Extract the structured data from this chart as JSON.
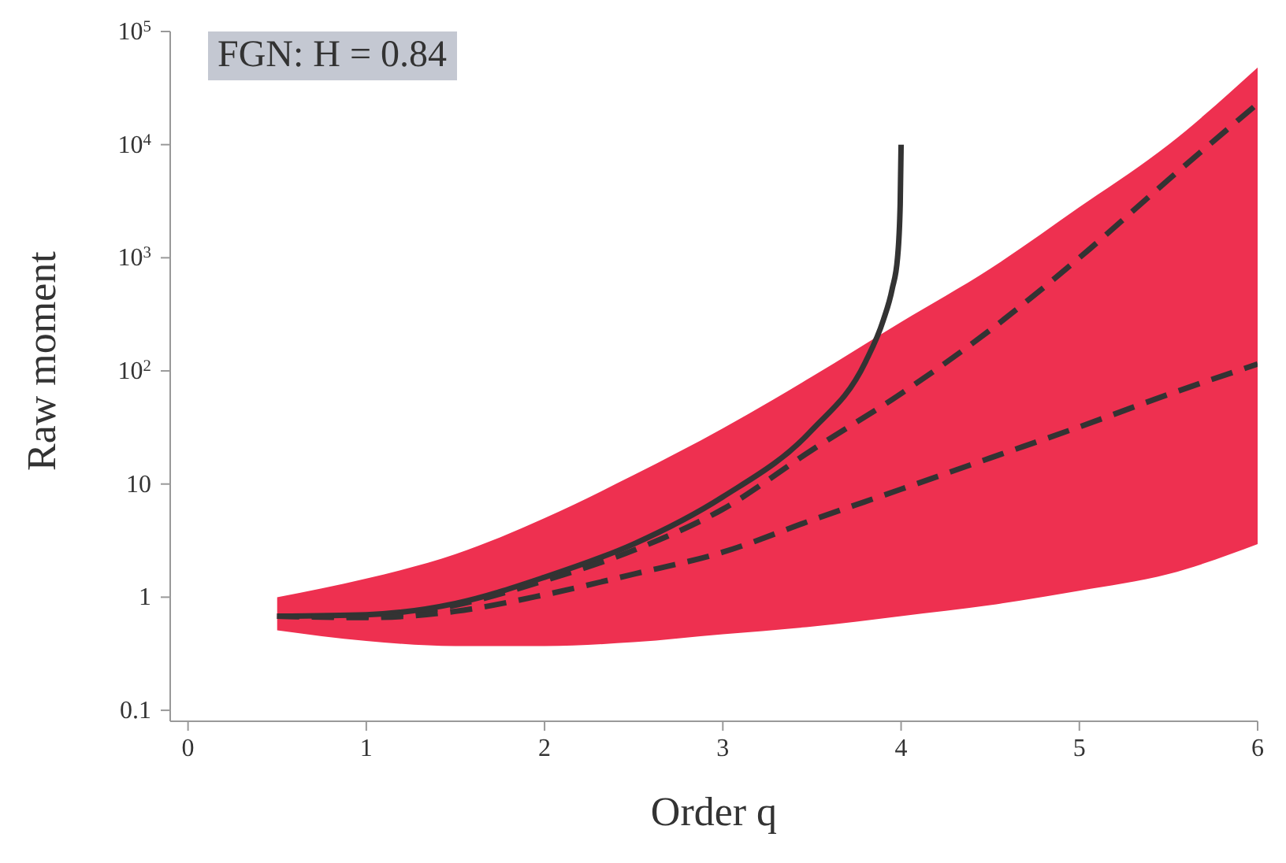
{
  "chart_data": {
    "type": "line",
    "title": "FGN: H = 0.84",
    "xlabel": "Order q",
    "ylabel": "Raw moment",
    "log": "y",
    "grid": false,
    "marker": "none",
    "xlim": [
      -0.1,
      6
    ],
    "xticks": [
      0,
      1,
      2,
      3,
      4,
      5,
      6
    ],
    "ylim": [
      0.08,
      100000
    ],
    "yticks": [
      0.1,
      1,
      10,
      {
        "value": 100,
        "label": "10$^{2}$"
      },
      {
        "value": 1000,
        "label": "10$^{3}$"
      },
      {
        "value": 10000,
        "label": "10$^{4}$"
      },
      {
        "value": 100000,
        "label": "10$^{5}$"
      }
    ],
    "series": [
      {
        "type": "area",
        "color": "#ee3050",
        "x": [
          0.5,
          1,
          1.5,
          2,
          2.5,
          3,
          3.5,
          4,
          4.5,
          5,
          5.5,
          6
        ],
        "values": [
          null,
          null,
          null,
          null,
          null,
          null,
          null,
          null,
          null,
          null,
          null,
          null
        ],
        "lower": [
          0.51,
          0.41,
          0.37,
          0.37,
          0.4,
          0.47,
          0.55,
          0.68,
          0.85,
          1.14,
          1.6,
          2.95
        ],
        "upper": [
          1.0,
          1.46,
          2.4,
          5,
          12,
          31,
          89,
          270,
          800,
          2800,
          10000,
          48000
        ]
      },
      {
        "color": "#333333",
        "line_style": "solid",
        "x": [
          0.5,
          1,
          1.5,
          2,
          2.5,
          3,
          3.5,
          3.8,
          3.9,
          3.95,
          3.98,
          3.995,
          4
        ],
        "values": [
          0.68,
          0.7,
          0.88,
          1.5,
          2.95,
          7.7,
          30,
          120,
          280,
          530,
          1000,
          3000,
          10000
        ]
      },
      {
        "color": "#333333",
        "line_style": "dashed",
        "x": [
          0.5,
          1,
          1.5,
          2,
          2.5,
          3,
          3.5,
          4,
          4.5,
          5,
          5.5,
          6
        ],
        "values": [
          0.68,
          0.67,
          0.85,
          1.4,
          2.6,
          6,
          20,
          63,
          230,
          1000,
          4900,
          23000
        ]
      },
      {
        "color": "#333333",
        "line_style": "dashed",
        "x": [
          0.5,
          1,
          1.5,
          2,
          2.5,
          3,
          3.5,
          4,
          4.5,
          5,
          5.5,
          6
        ],
        "values": [
          0.68,
          0.66,
          0.75,
          1.05,
          1.6,
          2.5,
          4.8,
          9,
          17,
          32,
          62,
          115
        ]
      }
    ]
  }
}
